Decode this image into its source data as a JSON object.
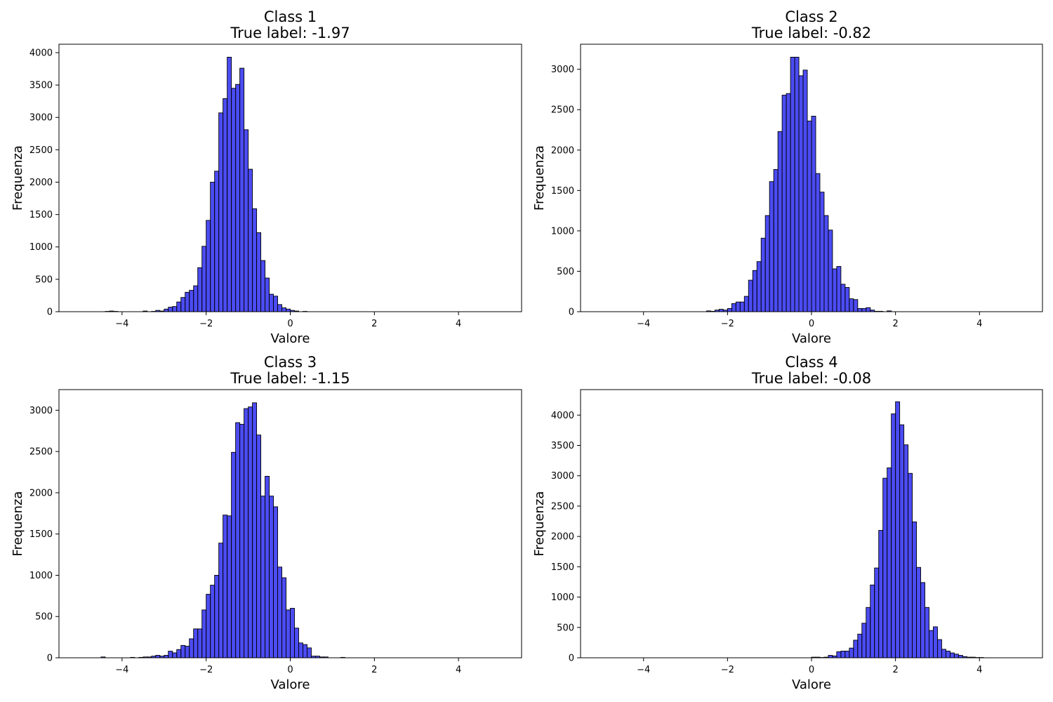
{
  "chart_data": [
    {
      "type": "bar",
      "title": "Class 1",
      "subtitle": "True label: -1.97",
      "xlabel": "Valore",
      "ylabel": "Frequenza",
      "xlim": [
        -5.5,
        5.5
      ],
      "ylim": [
        0,
        4130
      ],
      "xticks": [
        -4,
        -2,
        0,
        2,
        4
      ],
      "yticks": [
        0,
        500,
        1000,
        1500,
        2000,
        2500,
        3000,
        3500,
        4000
      ],
      "bin_start": -5.0,
      "bin_width": 0.1,
      "values": [
        0,
        0,
        0,
        0,
        0,
        0,
        5,
        10,
        5,
        0,
        0,
        0,
        0,
        0,
        0,
        10,
        0,
        5,
        20,
        10,
        40,
        70,
        80,
        150,
        220,
        300,
        330,
        400,
        680,
        1010,
        1410,
        2000,
        2170,
        3070,
        3290,
        3930,
        3450,
        3510,
        3760,
        2810,
        2200,
        1590,
        1220,
        790,
        520,
        270,
        240,
        110,
        60,
        40,
        20,
        10,
        0,
        5,
        0,
        0,
        0,
        0,
        0,
        0,
        0,
        0,
        0,
        0,
        0,
        0,
        0,
        0,
        0,
        0,
        0,
        0,
        0,
        0,
        0,
        0,
        0,
        0,
        0,
        0,
        0,
        0,
        0,
        0,
        0,
        0,
        0,
        0,
        0,
        0,
        0,
        0,
        0,
        0,
        0,
        0,
        0,
        0,
        0,
        0
      ]
    },
    {
      "type": "bar",
      "title": "Class 2",
      "subtitle": "True label: -0.82",
      "xlabel": "Valore",
      "ylabel": "Frequenza",
      "xlim": [
        -5.5,
        5.5
      ],
      "ylim": [
        0,
        3310
      ],
      "xticks": [
        -4,
        -2,
        0,
        2,
        4
      ],
      "yticks": [
        0,
        500,
        1000,
        1500,
        2000,
        2500,
        3000
      ],
      "bin_start": -5.0,
      "bin_width": 0.1,
      "values": [
        0,
        0,
        0,
        0,
        0,
        0,
        0,
        0,
        0,
        0,
        0,
        0,
        0,
        0,
        0,
        0,
        0,
        0,
        0,
        0,
        0,
        0,
        0,
        0,
        0,
        10,
        5,
        20,
        30,
        20,
        40,
        100,
        120,
        120,
        190,
        390,
        510,
        620,
        910,
        1190,
        1610,
        1760,
        2230,
        2680,
        2700,
        3150,
        3150,
        2920,
        2990,
        2360,
        2420,
        1710,
        1480,
        1190,
        1010,
        530,
        560,
        340,
        300,
        160,
        150,
        40,
        40,
        50,
        20,
        5,
        5,
        0,
        10,
        0,
        0,
        0,
        0,
        0,
        0,
        0,
        0,
        0,
        0,
        0,
        0,
        0,
        0,
        0,
        0,
        0,
        0,
        0,
        0,
        0,
        0,
        0,
        0,
        0,
        0,
        0,
        0,
        0,
        0,
        0
      ]
    },
    {
      "type": "bar",
      "title": "Class 3",
      "subtitle": "True label: -1.15",
      "xlabel": "Valore",
      "ylabel": "Frequenza",
      "xlim": [
        -5.5,
        5.5
      ],
      "ylim": [
        0,
        3250
      ],
      "xticks": [
        -4,
        -2,
        0,
        2,
        4
      ],
      "yticks": [
        0,
        500,
        1000,
        1500,
        2000,
        2500,
        3000
      ],
      "bin_start": -5.0,
      "bin_width": 0.1,
      "values": [
        0,
        0,
        0,
        0,
        0,
        10,
        0,
        0,
        0,
        0,
        0,
        0,
        5,
        0,
        5,
        10,
        10,
        20,
        30,
        20,
        30,
        80,
        60,
        100,
        150,
        140,
        230,
        350,
        350,
        580,
        770,
        880,
        1000,
        1390,
        1730,
        1720,
        2490,
        2850,
        2830,
        3020,
        3040,
        3090,
        2700,
        1960,
        2200,
        1960,
        1830,
        1100,
        970,
        580,
        600,
        360,
        180,
        160,
        120,
        20,
        20,
        10,
        10,
        0,
        0,
        0,
        5,
        0,
        0,
        0,
        0,
        0,
        0,
        0,
        0,
        0,
        0,
        0,
        0,
        0,
        0,
        0,
        0,
        0,
        0,
        0,
        0,
        0,
        0,
        0,
        0,
        0,
        0,
        0,
        0,
        0,
        0,
        0,
        0,
        0,
        0,
        0,
        0,
        0
      ]
    },
    {
      "type": "bar",
      "title": "Class 4",
      "subtitle": "True label: -0.08",
      "xlabel": "Valore",
      "ylabel": "Frequenza",
      "xlim": [
        -5.5,
        5.5
      ],
      "ylim": [
        0,
        4420
      ],
      "xticks": [
        -4,
        -2,
        0,
        2,
        4
      ],
      "yticks": [
        0,
        500,
        1000,
        1500,
        2000,
        2500,
        3000,
        3500,
        4000
      ],
      "bin_start": -5.0,
      "bin_width": 0.1,
      "values": [
        0,
        0,
        0,
        0,
        0,
        0,
        0,
        0,
        0,
        0,
        0,
        0,
        0,
        0,
        0,
        0,
        0,
        0,
        0,
        0,
        0,
        0,
        0,
        0,
        0,
        0,
        0,
        0,
        0,
        0,
        0,
        0,
        0,
        0,
        0,
        0,
        0,
        0,
        0,
        0,
        0,
        0,
        0,
        0,
        0,
        0,
        0,
        0,
        0,
        0,
        10,
        10,
        5,
        10,
        40,
        30,
        100,
        110,
        110,
        160,
        290,
        390,
        570,
        830,
        1200,
        1480,
        2100,
        2960,
        3130,
        4020,
        4220,
        3840,
        3510,
        3040,
        2240,
        1490,
        1240,
        830,
        450,
        510,
        300,
        140,
        110,
        80,
        60,
        40,
        20,
        10,
        10,
        5,
        5,
        0,
        0,
        0,
        0,
        0,
        0,
        0,
        0,
        0,
        0,
        0,
        0,
        0,
        0,
        0,
        0,
        0,
        0,
        0,
        0,
        0,
        0,
        0,
        0,
        0,
        0,
        0,
        0,
        0,
        0,
        0,
        0
      ]
    }
  ],
  "style": {
    "bar_fill": "#0000ee",
    "bar_opacity": 0.7,
    "bar_edge": "#000000"
  }
}
